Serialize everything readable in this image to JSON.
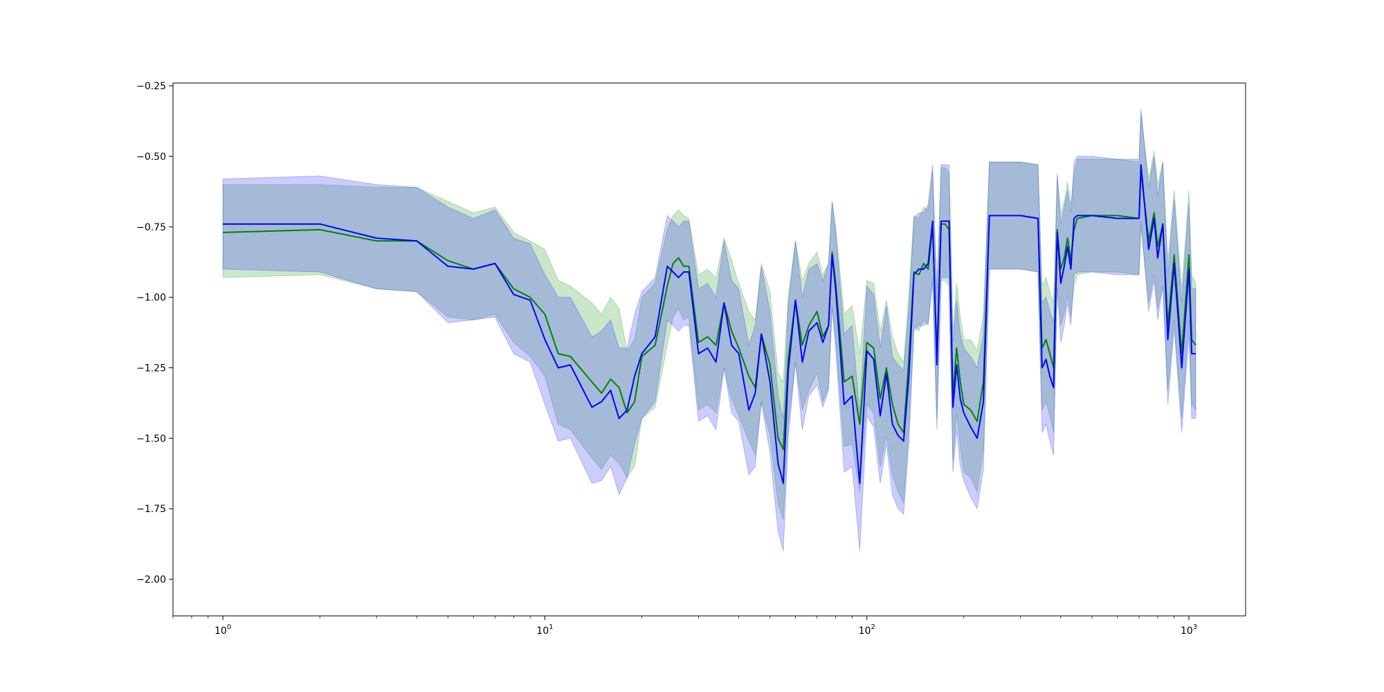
{
  "chart_data": {
    "type": "line",
    "title": "",
    "xlabel": "",
    "ylabel": "",
    "xscale": "log",
    "xlim": [
      0.7,
      1500
    ],
    "ylim": [
      -2.13,
      -0.24
    ],
    "grid": false,
    "legend": "none",
    "x_tick_labels": [
      {
        "base": "10",
        "exp": "0",
        "value": 1
      },
      {
        "base": "10",
        "exp": "1",
        "value": 10
      },
      {
        "base": "10",
        "exp": "2",
        "value": 100
      },
      {
        "base": "10",
        "exp": "3",
        "value": 1000
      }
    ],
    "y_ticks": [
      -0.25,
      -0.5,
      -0.75,
      -1.0,
      -1.25,
      -1.5,
      -1.75,
      -2.0
    ],
    "y_tick_labels": [
      "−0.25",
      "−0.50",
      "−0.75",
      "−1.00",
      "−1.25",
      "−1.50",
      "−1.75",
      "−2.00"
    ],
    "series": [
      {
        "color": "#008000",
        "band_color": "#2ca02c",
        "x": [
          1,
          2,
          3,
          4,
          5,
          6,
          7,
          8,
          9,
          10,
          11,
          12,
          14,
          15,
          16,
          17,
          18,
          19,
          20,
          22,
          24,
          25,
          26,
          27,
          28,
          30,
          32,
          34,
          36,
          38,
          40,
          43,
          45,
          47,
          50,
          53,
          55,
          57,
          60,
          63,
          66,
          70,
          73,
          76,
          78,
          80,
          85,
          90,
          95,
          100,
          105,
          110,
          115,
          120,
          125,
          130,
          135,
          140,
          145,
          150,
          155,
          160,
          165,
          170,
          175,
          180,
          185,
          190,
          195,
          200,
          210,
          220,
          230,
          240,
          250,
          260,
          300,
          340,
          350,
          360,
          370,
          380,
          390,
          400,
          410,
          420,
          430,
          440,
          450,
          500,
          600,
          700,
          710,
          750,
          780,
          800,
          830,
          860,
          900,
          950,
          1000,
          1020,
          1050
        ],
        "y": [
          -0.77,
          -0.76,
          -0.8,
          -0.8,
          -0.87,
          -0.9,
          -0.88,
          -0.97,
          -1.0,
          -1.06,
          -1.2,
          -1.21,
          -1.3,
          -1.34,
          -1.29,
          -1.32,
          -1.41,
          -1.37,
          -1.21,
          -1.17,
          -0.96,
          -0.88,
          -0.86,
          -0.89,
          -0.89,
          -1.16,
          -1.14,
          -1.17,
          -1.02,
          -1.12,
          -1.18,
          -1.28,
          -1.32,
          -1.13,
          -1.24,
          -1.5,
          -1.54,
          -1.22,
          -1.01,
          -1.17,
          -1.1,
          -1.05,
          -1.14,
          -1.1,
          -0.84,
          -0.95,
          -1.3,
          -1.28,
          -1.45,
          -1.16,
          -1.18,
          -1.36,
          -1.25,
          -1.38,
          -1.45,
          -1.48,
          -1.22,
          -0.91,
          -0.92,
          -0.88,
          -0.9,
          -0.75,
          -1.2,
          -0.74,
          -0.74,
          -0.76,
          -1.35,
          -1.18,
          -1.3,
          -1.38,
          -1.4,
          -1.44,
          -1.3,
          -0.71,
          -0.71,
          -0.71,
          -0.71,
          -0.72,
          -1.18,
          -1.15,
          -1.2,
          -1.25,
          -0.76,
          -0.9,
          -0.86,
          -0.79,
          -0.87,
          -0.76,
          -0.72,
          -0.71,
          -0.71,
          -0.72,
          -0.55,
          -0.8,
          -0.7,
          -0.82,
          -0.74,
          -1.1,
          -0.85,
          -1.2,
          -0.85,
          -1.15,
          -1.17
        ],
        "upper": [
          -0.6,
          -0.6,
          -0.61,
          -0.61,
          -0.66,
          -0.7,
          -0.68,
          -0.77,
          -0.8,
          -0.83,
          -0.94,
          -0.96,
          -1.02,
          -1.06,
          -1.0,
          -1.04,
          -1.19,
          -1.15,
          -1.0,
          -0.95,
          -0.76,
          -0.71,
          -0.69,
          -0.71,
          -0.72,
          -0.92,
          -0.9,
          -0.93,
          -0.79,
          -0.87,
          -0.95,
          -1.05,
          -1.08,
          -0.88,
          -0.98,
          -1.27,
          -1.3,
          -0.99,
          -0.8,
          -0.94,
          -0.88,
          -0.84,
          -0.92,
          -0.88,
          -0.66,
          -0.75,
          -1.06,
          -1.03,
          -1.2,
          -0.94,
          -0.95,
          -1.12,
          -1.01,
          -1.14,
          -1.2,
          -1.23,
          -0.99,
          -0.71,
          -0.72,
          -0.68,
          -0.69,
          -0.55,
          -0.97,
          -0.54,
          -0.54,
          -0.56,
          -1.12,
          -0.95,
          -1.07,
          -1.15,
          -1.15,
          -1.19,
          -1.06,
          -0.52,
          -0.52,
          -0.52,
          -0.52,
          -0.53,
          -0.96,
          -0.93,
          -0.98,
          -1.02,
          -0.56,
          -0.7,
          -0.66,
          -0.59,
          -0.67,
          -0.56,
          -0.51,
          -0.51,
          -0.51,
          -0.52,
          -0.35,
          -0.58,
          -0.48,
          -0.6,
          -0.52,
          -0.87,
          -0.62,
          -0.97,
          -0.62,
          -0.92,
          -0.95
        ],
        "lower": [
          -0.93,
          -0.92,
          -0.97,
          -0.98,
          -1.07,
          -1.08,
          -1.06,
          -1.16,
          -1.21,
          -1.28,
          -1.45,
          -1.47,
          -1.57,
          -1.61,
          -1.56,
          -1.59,
          -1.64,
          -1.6,
          -1.43,
          -1.39,
          -1.17,
          -1.07,
          -1.04,
          -1.08,
          -1.07,
          -1.4,
          -1.38,
          -1.41,
          -1.25,
          -1.36,
          -1.42,
          -1.51,
          -1.56,
          -1.37,
          -1.49,
          -1.73,
          -1.79,
          -1.45,
          -1.23,
          -1.4,
          -1.33,
          -1.27,
          -1.37,
          -1.32,
          -1.03,
          -1.15,
          -1.53,
          -1.52,
          -1.69,
          -1.38,
          -1.41,
          -1.6,
          -1.49,
          -1.63,
          -1.69,
          -1.73,
          -1.46,
          -1.1,
          -1.12,
          -1.08,
          -1.1,
          -0.95,
          -1.43,
          -0.94,
          -0.94,
          -0.96,
          -1.58,
          -1.41,
          -1.53,
          -1.62,
          -1.64,
          -1.69,
          -1.54,
          -0.9,
          -0.9,
          -0.9,
          -0.9,
          -0.91,
          -1.4,
          -1.37,
          -1.42,
          -1.48,
          -0.96,
          -1.1,
          -1.06,
          -0.99,
          -1.07,
          -0.96,
          -0.92,
          -0.91,
          -0.91,
          -0.92,
          -0.75,
          -1.02,
          -0.92,
          -1.04,
          -0.96,
          -1.33,
          -1.08,
          -1.43,
          -1.08,
          -1.38,
          -1.4
        ]
      },
      {
        "color": "#0000ff",
        "band_color": "#3333ff",
        "x": [
          1,
          2,
          3,
          4,
          5,
          6,
          7,
          8,
          9,
          10,
          11,
          12,
          14,
          15,
          16,
          17,
          18,
          19,
          20,
          22,
          24,
          25,
          26,
          27,
          28,
          30,
          32,
          34,
          36,
          38,
          40,
          43,
          45,
          47,
          50,
          53,
          55,
          57,
          60,
          63,
          66,
          70,
          73,
          76,
          78,
          80,
          85,
          90,
          95,
          100,
          105,
          110,
          115,
          120,
          125,
          130,
          135,
          140,
          145,
          150,
          155,
          160,
          165,
          170,
          175,
          180,
          185,
          190,
          195,
          200,
          210,
          220,
          230,
          240,
          250,
          260,
          300,
          340,
          350,
          360,
          370,
          380,
          390,
          400,
          410,
          420,
          430,
          440,
          450,
          500,
          600,
          700,
          710,
          750,
          780,
          800,
          830,
          860,
          900,
          950,
          1000,
          1020,
          1050
        ],
        "y": [
          -0.74,
          -0.74,
          -0.79,
          -0.8,
          -0.89,
          -0.9,
          -0.88,
          -0.99,
          -1.01,
          -1.15,
          -1.25,
          -1.24,
          -1.39,
          -1.37,
          -1.33,
          -1.43,
          -1.4,
          -1.28,
          -1.2,
          -1.14,
          -0.89,
          -0.91,
          -0.93,
          -0.91,
          -0.91,
          -1.2,
          -1.18,
          -1.23,
          -1.02,
          -1.17,
          -1.2,
          -1.4,
          -1.34,
          -1.13,
          -1.3,
          -1.59,
          -1.66,
          -1.26,
          -1.01,
          -1.23,
          -1.12,
          -1.09,
          -1.16,
          -1.1,
          -0.85,
          -0.97,
          -1.38,
          -1.35,
          -1.66,
          -1.19,
          -1.22,
          -1.42,
          -1.27,
          -1.45,
          -1.49,
          -1.51,
          -1.28,
          -0.92,
          -0.9,
          -0.9,
          -0.88,
          -0.73,
          -1.24,
          -0.73,
          -0.73,
          -0.73,
          -1.39,
          -1.24,
          -1.36,
          -1.41,
          -1.46,
          -1.5,
          -1.37,
          -0.71,
          -0.71,
          -0.71,
          -0.71,
          -0.72,
          -1.25,
          -1.22,
          -1.28,
          -1.32,
          -0.77,
          -0.95,
          -0.89,
          -0.82,
          -0.9,
          -0.72,
          -0.71,
          -0.71,
          -0.72,
          -0.72,
          -0.53,
          -0.83,
          -0.72,
          -0.86,
          -0.74,
          -1.15,
          -0.88,
          -1.25,
          -0.9,
          -1.2,
          -1.2
        ],
        "upper": [
          -0.58,
          -0.57,
          -0.6,
          -0.61,
          -0.68,
          -0.72,
          -0.69,
          -0.79,
          -0.81,
          -0.92,
          -1.0,
          -1.0,
          -1.14,
          -1.12,
          -1.08,
          -1.18,
          -1.18,
          -1.06,
          -0.98,
          -0.93,
          -0.71,
          -0.73,
          -0.75,
          -0.73,
          -0.73,
          -0.97,
          -0.95,
          -1.0,
          -0.8,
          -0.94,
          -0.97,
          -1.17,
          -1.1,
          -0.89,
          -1.05,
          -1.35,
          -1.43,
          -1.03,
          -0.8,
          -1.0,
          -0.9,
          -0.88,
          -0.94,
          -0.88,
          -0.66,
          -0.77,
          -1.13,
          -1.1,
          -1.41,
          -0.96,
          -0.99,
          -1.18,
          -1.03,
          -1.21,
          -1.24,
          -1.26,
          -1.04,
          -0.72,
          -0.7,
          -0.7,
          -0.67,
          -0.53,
          -1.01,
          -0.53,
          -0.53,
          -0.53,
          -1.16,
          -1.01,
          -1.13,
          -1.18,
          -1.21,
          -1.25,
          -1.13,
          -0.52,
          -0.52,
          -0.52,
          -0.52,
          -0.53,
          -1.02,
          -1.0,
          -1.05,
          -1.09,
          -0.57,
          -0.74,
          -0.68,
          -0.62,
          -0.7,
          -0.52,
          -0.5,
          -0.5,
          -0.51,
          -0.51,
          -0.33,
          -0.61,
          -0.5,
          -0.64,
          -0.52,
          -0.92,
          -0.65,
          -1.02,
          -0.67,
          -0.97,
          -0.97
        ],
        "lower": [
          -0.9,
          -0.91,
          -0.97,
          -0.98,
          -1.09,
          -1.08,
          -1.07,
          -1.2,
          -1.23,
          -1.38,
          -1.51,
          -1.5,
          -1.66,
          -1.65,
          -1.6,
          -1.7,
          -1.64,
          -1.52,
          -1.43,
          -1.37,
          -1.08,
          -1.1,
          -1.12,
          -1.1,
          -1.1,
          -1.44,
          -1.42,
          -1.47,
          -1.25,
          -1.41,
          -1.44,
          -1.63,
          -1.6,
          -1.37,
          -1.55,
          -1.83,
          -1.9,
          -1.5,
          -1.23,
          -1.47,
          -1.35,
          -1.31,
          -1.39,
          -1.33,
          -1.04,
          -1.18,
          -1.62,
          -1.6,
          -1.9,
          -1.42,
          -1.46,
          -1.66,
          -1.52,
          -1.7,
          -1.75,
          -1.77,
          -1.52,
          -1.12,
          -1.1,
          -1.1,
          -1.09,
          -0.93,
          -1.47,
          -0.93,
          -0.93,
          -0.93,
          -1.62,
          -1.47,
          -1.6,
          -1.65,
          -1.71,
          -1.75,
          -1.61,
          -0.9,
          -0.9,
          -0.9,
          -0.9,
          -0.91,
          -1.48,
          -1.45,
          -1.51,
          -1.56,
          -0.97,
          -1.16,
          -1.1,
          -1.02,
          -1.1,
          -0.92,
          -0.91,
          -0.91,
          -0.92,
          -0.92,
          -0.73,
          -1.05,
          -0.94,
          -1.08,
          -0.96,
          -1.38,
          -1.11,
          -1.48,
          -1.13,
          -1.43,
          -1.43
        ]
      }
    ]
  }
}
